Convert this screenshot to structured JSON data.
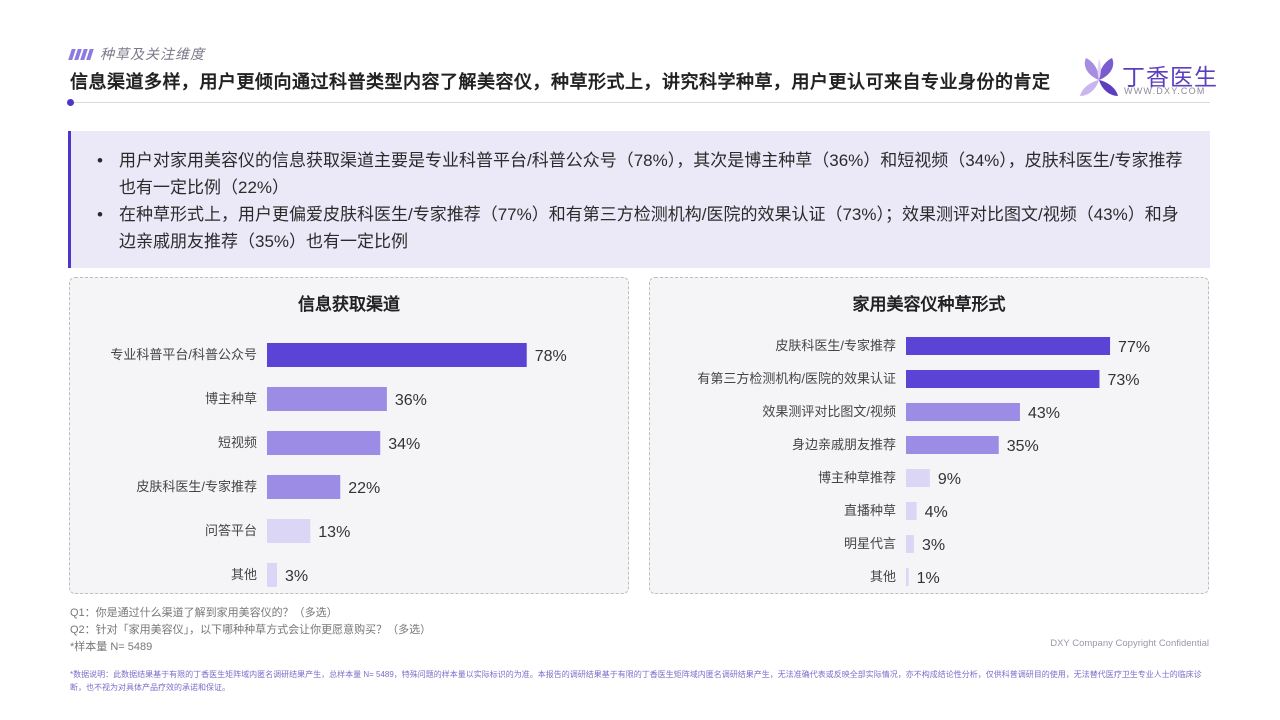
{
  "header": {
    "section_tag": "种草及关注维度",
    "headline": "信息渠道多样，用户更倾向通过科普类型内容了解美容仪，种草形式上，讲究科学种草，用户更认可来自专业身份的肯定",
    "logo_text": "丁香医生",
    "logo_url": "WWW.DXY.COM"
  },
  "summary": {
    "bullets": [
      "用户对家用美容仪的信息获取渠道主要是专业科普平台/科普公众号（78%），其次是博主种草（36%）和短视频（34%），皮肤科医生/专家推荐也有一定比例（22%）",
      "在种草形式上，用户更偏爱皮肤科医生/专家推荐（77%）和有第三方检测机构/医院的效果认证（73%）；效果测评对比图文/视频（43%）和身边亲戚朋友推荐（35%）也有一定比例"
    ]
  },
  "chart_data": [
    {
      "type": "bar",
      "orientation": "horizontal",
      "title": "信息获取渠道",
      "categories": [
        "专业科普平台/科普公众号",
        "博主种草",
        "短视频",
        "皮肤科医生/专家推荐",
        "问答平台",
        "其他"
      ],
      "values": [
        78,
        36,
        34,
        22,
        13,
        3
      ],
      "value_suffix": "%",
      "xlim": [
        0,
        100
      ],
      "bar_colors": [
        "#5b43d6",
        "#9d8ce6",
        "#9d8ce6",
        "#9d8ce6",
        "#dcd6f6",
        "#dcd6f6"
      ],
      "grid": false
    },
    {
      "type": "bar",
      "orientation": "horizontal",
      "title": "家用美容仪种草形式",
      "categories": [
        "皮肤科医生/专家推荐",
        "有第三方检测机构/医院的效果认证",
        "效果测评对比图文/视频",
        "身边亲戚朋友推荐",
        "博主种草推荐",
        "直播种草",
        "明星代言",
        "其他"
      ],
      "values": [
        77,
        73,
        43,
        35,
        9,
        4,
        3,
        1
      ],
      "value_suffix": "%",
      "xlim": [
        0,
        100
      ],
      "bar_colors": [
        "#5b43d6",
        "#5b43d6",
        "#9d8ce6",
        "#9d8ce6",
        "#dcd6f6",
        "#dcd6f6",
        "#dcd6f6",
        "#dcd6f6"
      ],
      "grid": false
    }
  ],
  "footer": {
    "q1": "Q1：你是通过什么渠道了解到家用美容仪的？（多选）",
    "q2": "Q2：针对「家用美容仪」，以下哪种种草方式会让你更愿意购买？（多选）",
    "sample": "*样本量 N= 5489",
    "copyright": "DXY Company Copyright Confidential",
    "disclaimer": "*数据说明：此数据结果基于有限的丁香医生矩阵域内匿名调研结果产生，总样本量 N= 5489，特殊问题的样本量以实际标识的为准。本报告的调研结果基于有限的丁香医生矩阵域内匿名调研结果产生，无法准确代表或反映全部实际情况，亦不构成结论性分析，仅供科普调研目的使用，无法替代医疗卫生专业人士的临床诊断，也不视为对具体产品疗效的承诺和保证。"
  }
}
